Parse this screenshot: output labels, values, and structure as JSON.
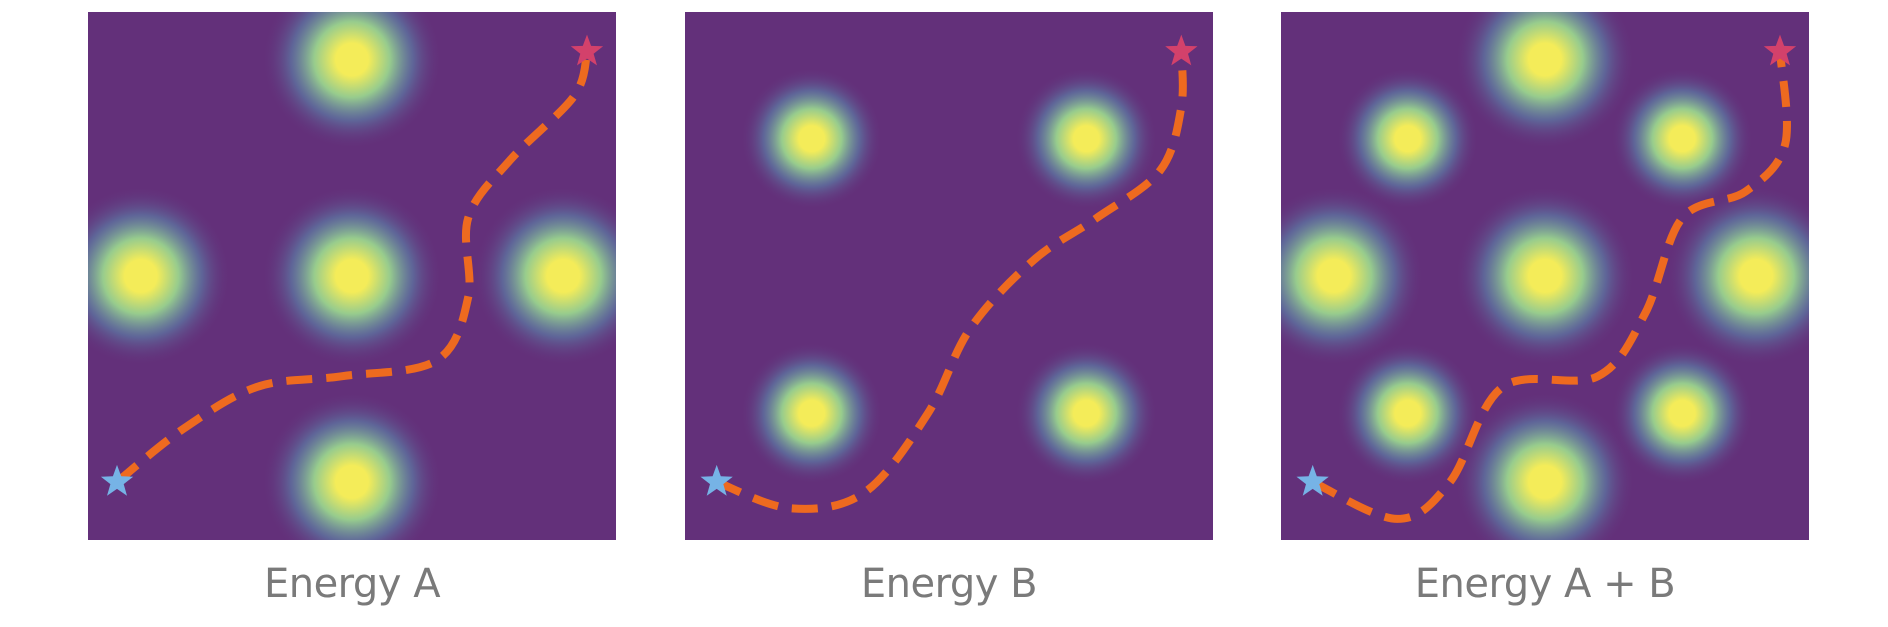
{
  "colors": {
    "background": "#63307a",
    "well_center": "#f4ec59",
    "well_mid": "#9ad48e",
    "well_outer": "#5b8fb0",
    "path": "#ee6a1f",
    "start_star": "#76b3e6",
    "end_star": "#d3416b",
    "caption": "#7a7a7a"
  },
  "icons": {
    "start": "star-icon",
    "end": "star-icon"
  },
  "panels": [
    {
      "caption": "Energy A",
      "wells": [
        [
          0.5,
          0.09,
          0.95
        ],
        [
          0.1,
          0.5,
          0.95
        ],
        [
          0.5,
          0.5,
          0.95
        ],
        [
          0.9,
          0.5,
          0.95
        ],
        [
          0.5,
          0.89,
          0.95
        ]
      ],
      "path": [
        [
          0.055,
          0.89
        ],
        [
          0.18,
          0.79
        ],
        [
          0.32,
          0.71
        ],
        [
          0.48,
          0.69
        ],
        [
          0.66,
          0.66
        ],
        [
          0.72,
          0.54
        ],
        [
          0.72,
          0.39
        ],
        [
          0.8,
          0.28
        ],
        [
          0.92,
          0.16
        ],
        [
          0.945,
          0.08
        ]
      ],
      "start": [
        0.055,
        0.89
      ],
      "end": [
        0.945,
        0.075
      ]
    },
    {
      "caption": "Energy B",
      "wells": [
        [
          0.24,
          0.24,
          0.75
        ],
        [
          0.76,
          0.24,
          0.75
        ],
        [
          0.24,
          0.76,
          0.75
        ],
        [
          0.76,
          0.76,
          0.75
        ]
      ],
      "path": [
        [
          0.06,
          0.89
        ],
        [
          0.2,
          0.94
        ],
        [
          0.34,
          0.91
        ],
        [
          0.46,
          0.76
        ],
        [
          0.54,
          0.6
        ],
        [
          0.66,
          0.47
        ],
        [
          0.78,
          0.39
        ],
        [
          0.9,
          0.3
        ],
        [
          0.94,
          0.18
        ],
        [
          0.94,
          0.075
        ]
      ],
      "start": [
        0.06,
        0.89
      ],
      "end": [
        0.94,
        0.075
      ]
    },
    {
      "caption": "Energy A + B",
      "wells": [
        [
          0.5,
          0.09,
          0.95
        ],
        [
          0.24,
          0.24,
          0.75
        ],
        [
          0.76,
          0.24,
          0.75
        ],
        [
          0.1,
          0.5,
          0.95
        ],
        [
          0.5,
          0.5,
          0.95
        ],
        [
          0.9,
          0.5,
          0.95
        ],
        [
          0.24,
          0.76,
          0.75
        ],
        [
          0.76,
          0.76,
          0.75
        ],
        [
          0.5,
          0.89,
          0.95
        ]
      ],
      "path": [
        [
          0.06,
          0.89
        ],
        [
          0.22,
          0.96
        ],
        [
          0.32,
          0.89
        ],
        [
          0.42,
          0.71
        ],
        [
          0.6,
          0.69
        ],
        [
          0.69,
          0.57
        ],
        [
          0.76,
          0.39
        ],
        [
          0.88,
          0.34
        ],
        [
          0.955,
          0.25
        ],
        [
          0.945,
          0.075
        ]
      ],
      "start": [
        0.06,
        0.89
      ],
      "end": [
        0.945,
        0.075
      ]
    }
  ]
}
